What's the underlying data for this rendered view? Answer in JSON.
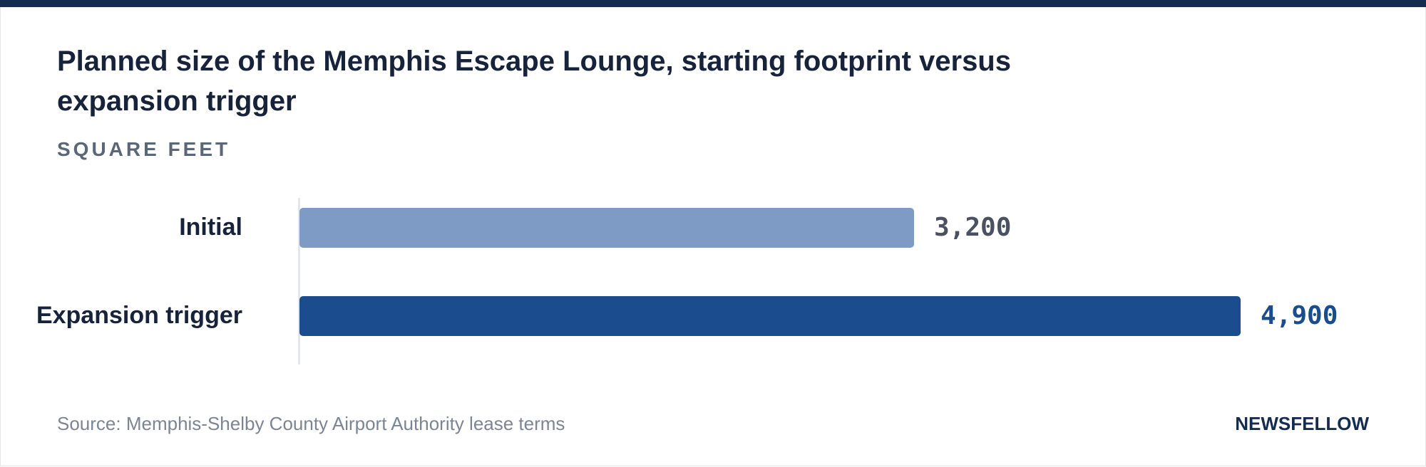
{
  "title": "Planned size of the Memphis Escape Lounge, starting footprint versus expansion trigger",
  "subtitle": "SQUARE FEET",
  "source": "Source: Memphis-Shelby County Airport Authority lease terms",
  "brand": "NEWSFELLOW",
  "colors": {
    "initial_bar": "#7d9bc5",
    "expansion_bar": "#1b4d8e",
    "initial_value": "#4a5160",
    "expansion_value": "#1b4d8e"
  },
  "chart_data": {
    "type": "bar",
    "orientation": "horizontal",
    "title": "Planned size of the Memphis Escape Lounge, starting footprint versus expansion trigger",
    "ylabel": "SQUARE FEET",
    "categories": [
      "Initial",
      "Expansion trigger"
    ],
    "values": [
      3200,
      4900
    ],
    "value_labels": [
      "3,200",
      "4,900"
    ],
    "xlim": [
      0,
      4900
    ],
    "grid": false,
    "legend": "none"
  }
}
